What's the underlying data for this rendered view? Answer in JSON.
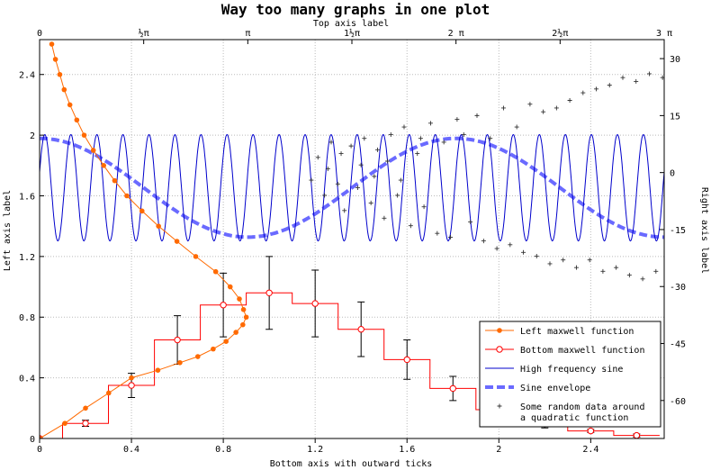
{
  "chart_data": {
    "type": "line",
    "title": "Way too many graphs in one plot",
    "top_axis": {
      "label": "Top axis label",
      "range": [
        0,
        9.42477796
      ],
      "tick_labels": [
        "0",
        "½π",
        "π",
        "1½π",
        "2 π",
        "2½π",
        "3 π"
      ],
      "tick_values": [
        0,
        1.5708,
        3.14159,
        4.71239,
        6.28319,
        7.85398,
        9.42478
      ]
    },
    "bottom_axis": {
      "label": "Bottom axis with outward ticks",
      "range": [
        0,
        2.72
      ],
      "tick_labels": [
        "0",
        "0.4",
        "0.8",
        "1.2",
        "1.6",
        "2",
        "2.4"
      ],
      "tick_values": [
        0,
        0.4,
        0.8,
        1.2,
        1.6,
        2.0,
        2.4
      ]
    },
    "left_axis": {
      "label": "Left axis label",
      "range": [
        0,
        2.63
      ],
      "tick_labels": [
        "0",
        "0.4",
        "0.8",
        "1.2",
        "1.6",
        "2",
        "2.4"
      ],
      "tick_values": [
        0,
        0.4,
        0.8,
        1.2,
        1.6,
        2.0,
        2.4
      ]
    },
    "right_axis": {
      "label": "Right axis label",
      "range": [
        -70,
        35
      ],
      "tick_labels": [
        "30",
        "15",
        "0",
        "-15",
        "-30",
        "-45",
        "-60"
      ],
      "tick_values": [
        30,
        15,
        0,
        -15,
        -30,
        -45,
        -60
      ]
    },
    "grid": true,
    "legend_position": "bottom-right",
    "series": [
      {
        "name": "Left maxwell function",
        "color": "#ff6a00",
        "style": "line-with-filled-dots",
        "axes": [
          "left",
          "bottom"
        ],
        "x": [
          0.053,
          0.069,
          0.088,
          0.107,
          0.132,
          0.162,
          0.194,
          0.234,
          0.279,
          0.327,
          0.38,
          0.446,
          0.518,
          0.598,
          0.68,
          0.767,
          0.83,
          0.87,
          0.888,
          0.9,
          0.885,
          0.855,
          0.812,
          0.756,
          0.689,
          0.611,
          0.515,
          0.4,
          0.301,
          0.2,
          0.11,
          0.0
        ],
        "y": [
          2.6,
          2.5,
          2.4,
          2.3,
          2.2,
          2.1,
          2.0,
          1.9,
          1.8,
          1.7,
          1.6,
          1.5,
          1.4,
          1.3,
          1.2,
          1.1,
          1.0,
          0.92,
          0.85,
          0.8,
          0.75,
          0.7,
          0.64,
          0.59,
          0.54,
          0.5,
          0.45,
          0.4,
          0.3,
          0.2,
          0.1,
          0.0
        ]
      },
      {
        "name": "Bottom maxwell function",
        "color": "#ff0000",
        "style": "step-with-open-circles-and-error-bars",
        "axes": [
          "left",
          "bottom"
        ],
        "x": [
          0.0,
          0.2,
          0.4,
          0.6,
          0.8,
          1.0,
          1.2,
          1.4,
          1.6,
          1.8,
          2.0,
          2.2,
          2.4,
          2.6
        ],
        "y": [
          0.0,
          0.1,
          0.35,
          0.65,
          0.88,
          0.96,
          0.89,
          0.72,
          0.52,
          0.33,
          0.19,
          0.1,
          0.05,
          0.02
        ],
        "error": [
          0.0,
          0.02,
          0.08,
          0.16,
          0.21,
          0.24,
          0.22,
          0.18,
          0.13,
          0.08,
          0.05,
          0.03,
          0.01,
          0.01
        ]
      },
      {
        "name": "High frequency sine",
        "color": "#0000cc",
        "style": "line",
        "axes": [
          "right",
          "top"
        ],
        "function": "amplitude=15 around 0 on right axis, 24 full periods across top axis range",
        "amplitude": 15,
        "periods": 24
      },
      {
        "name": "Sine envelope",
        "color": "#6a6aff",
        "style": "thick-dashed",
        "axes": [
          "right",
          "top"
        ],
        "function": "-(cos(x)) scaled, amplitude=12",
        "amplitude": 12
      },
      {
        "name": "Some random data around a quadratic function",
        "color": "#000000",
        "style": "plus-markers",
        "axes": [
          "right",
          "top"
        ],
        "x": [
          4.1,
          4.2,
          4.3,
          4.35,
          4.4,
          4.5,
          4.55,
          4.6,
          4.7,
          4.8,
          4.85,
          4.9,
          5.0,
          5.05,
          5.1,
          5.2,
          5.25,
          5.3,
          5.4,
          5.45,
          5.5,
          5.6,
          5.7,
          5.75,
          5.8,
          5.9,
          6.0,
          6.1,
          6.2,
          6.3,
          6.4,
          6.5,
          6.6,
          6.7,
          6.8,
          6.9,
          7.0,
          7.1,
          7.2,
          7.3,
          7.4,
          7.5,
          7.6,
          7.7,
          7.8,
          7.9,
          8.0,
          8.1,
          8.2,
          8.3,
          8.4,
          8.5,
          8.6,
          8.7,
          8.8,
          8.9,
          9.0,
          9.1,
          9.2,
          9.3,
          9.4
        ],
        "y": [
          -2,
          4,
          -6,
          1,
          8,
          -3,
          5,
          -10,
          7,
          -4,
          2,
          9,
          -8,
          -1,
          6,
          -12,
          3,
          10,
          -6,
          -2,
          12,
          -14,
          5,
          9,
          -9,
          13,
          -16,
          8,
          -17,
          14,
          10,
          -13,
          15,
          -18,
          9,
          -20,
          17,
          -19,
          12,
          -21,
          18,
          -22,
          16,
          -24,
          17,
          -23,
          19,
          -25,
          21,
          -23,
          22,
          -26,
          23,
          -25,
          25,
          -27,
          24,
          -28,
          26,
          -26,
          25
        ]
      }
    ]
  }
}
